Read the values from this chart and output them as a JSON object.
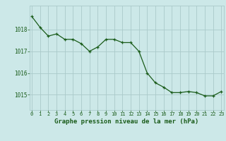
{
  "x": [
    0,
    1,
    2,
    3,
    4,
    5,
    6,
    7,
    8,
    9,
    10,
    11,
    12,
    13,
    14,
    15,
    16,
    17,
    18,
    19,
    20,
    21,
    22,
    23
  ],
  "y": [
    1018.6,
    1018.1,
    1017.7,
    1017.8,
    1017.55,
    1017.55,
    1017.35,
    1017.0,
    1017.2,
    1017.55,
    1017.55,
    1017.4,
    1017.4,
    1017.0,
    1016.0,
    1015.55,
    1015.35,
    1015.1,
    1015.1,
    1015.15,
    1015.1,
    1014.95,
    1014.95,
    1015.15
  ],
  "line_color": "#1a5c1a",
  "marker_color": "#1a5c1a",
  "bg_color": "#cce8e8",
  "grid_color": "#aacaca",
  "xlabel": "Graphe pression niveau de la mer (hPa)",
  "xlabel_color": "#1a5c1a",
  "tick_color": "#1a5c1a",
  "ylim": [
    1014.3,
    1019.1
  ],
  "yticks": [
    1015,
    1016,
    1017,
    1018
  ],
  "xticks": [
    0,
    1,
    2,
    3,
    4,
    5,
    6,
    7,
    8,
    9,
    10,
    11,
    12,
    13,
    14,
    15,
    16,
    17,
    18,
    19,
    20,
    21,
    22,
    23
  ],
  "xlim": [
    -0.3,
    23.3
  ]
}
